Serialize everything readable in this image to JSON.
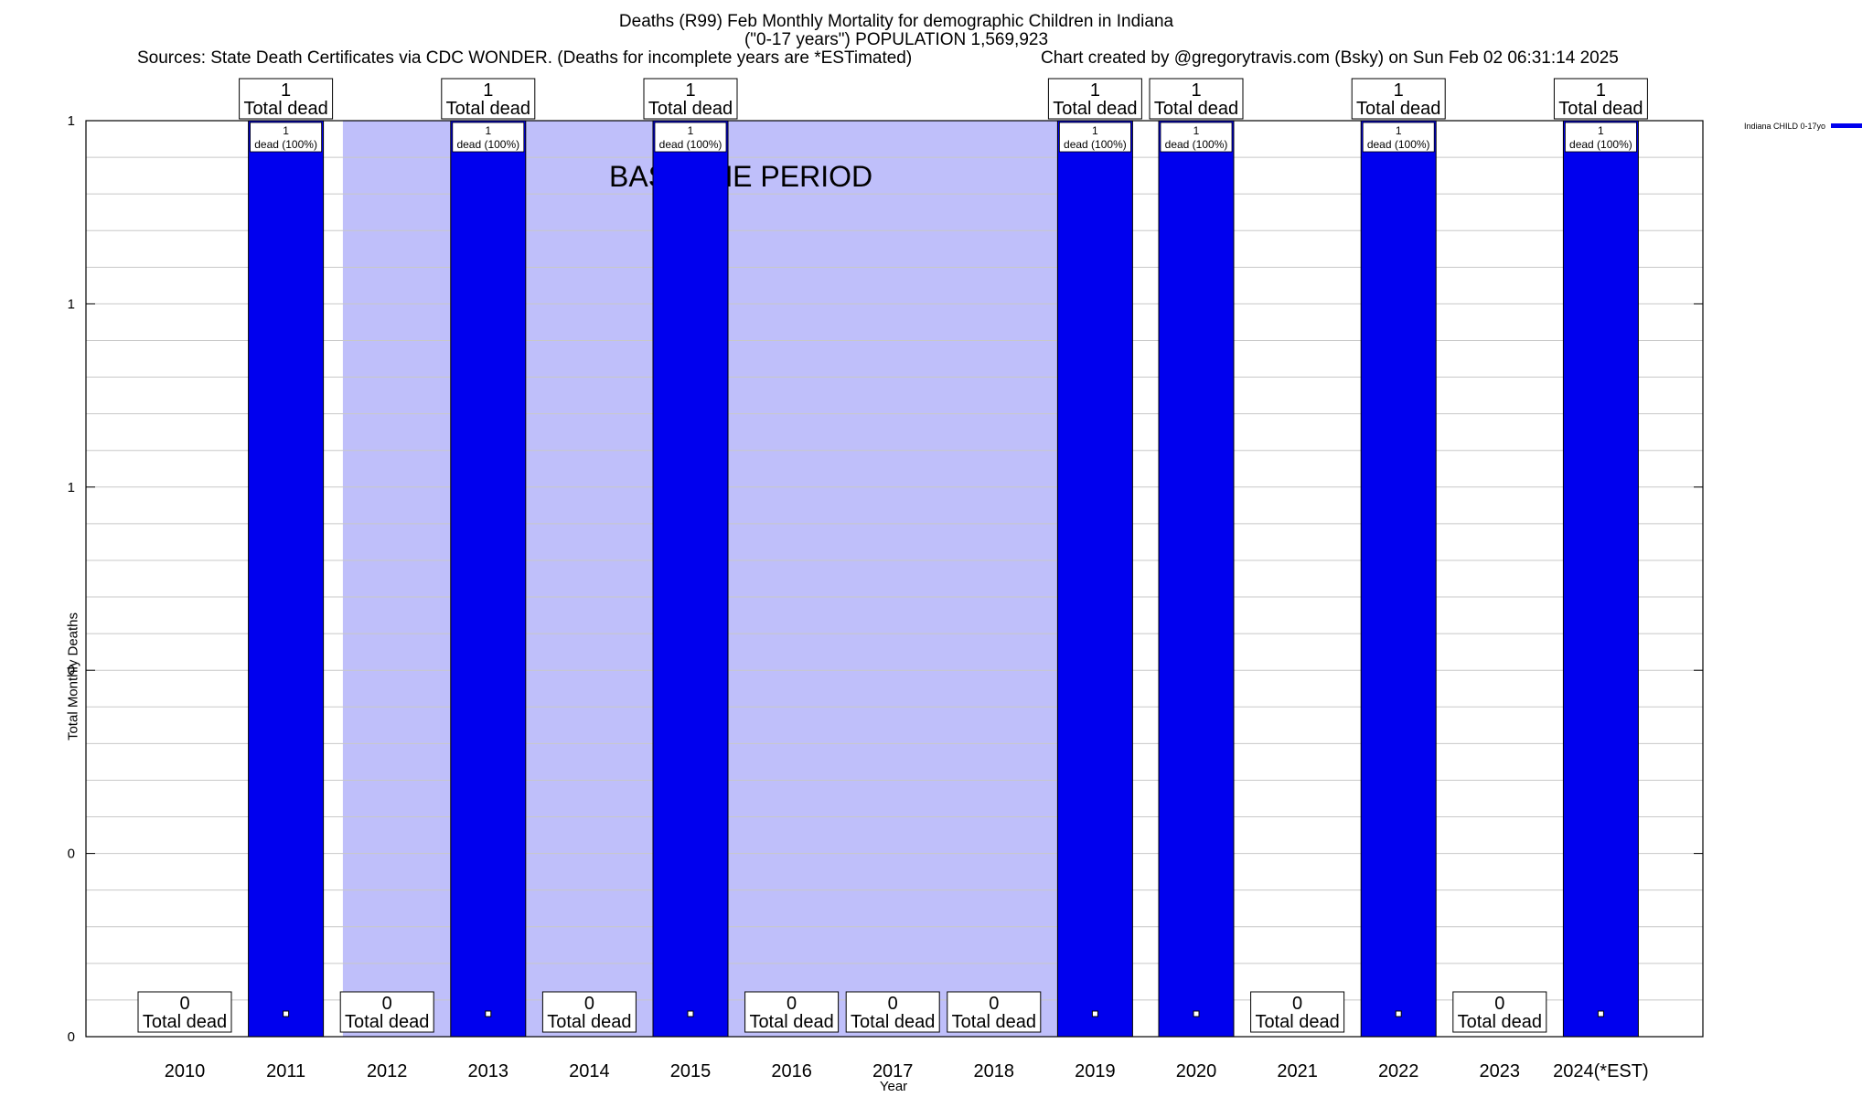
{
  "chart_data": {
    "type": "bar",
    "title": "Deaths (R99) Feb Monthly Mortality for demographic Children in Indiana",
    "subtitle": "(\"0-17 years\") POPULATION 1,569,923",
    "sources": "Sources: State Death Certificates via CDC WONDER. (Deaths for incomplete years are *ESTimated)",
    "credit": "Chart created by @gregorytravis.com (Bsky) on Sun Feb 02 06:31:14 2025",
    "xlabel": "Year",
    "ylabel": "Total Monthly Deaths",
    "categories": [
      "2010",
      "2011",
      "2012",
      "2013",
      "2014",
      "2015",
      "2016",
      "2017",
      "2018",
      "2019",
      "2020",
      "2021",
      "2022",
      "2023",
      "2024(*EST)"
    ],
    "values": [
      0,
      1,
      0,
      1,
      0,
      1,
      0,
      0,
      0,
      1,
      1,
      0,
      1,
      0,
      1
    ],
    "total_labels": [
      "0\nTotal dead",
      "1\nTotal dead",
      "0\nTotal dead",
      "1\nTotal dead",
      "0\nTotal dead",
      "1\nTotal dead",
      "0\nTotal dead",
      "0\nTotal dead",
      "0\nTotal dead",
      "1\nTotal dead",
      "1\nTotal dead",
      "0\nTotal dead",
      "1\nTotal dead",
      "0\nTotal dead",
      "1\nTotal dead"
    ],
    "inner_label_top": "1",
    "inner_label_bottom": "dead (100%)",
    "ylim": [
      0,
      1
    ],
    "y_tick_labels": [
      "0",
      "0",
      "0",
      "1",
      "1",
      "1"
    ],
    "grid": true,
    "baseline_period": {
      "label": "BASELINE PERIOD",
      "from": "2012",
      "to": "2019"
    },
    "legend": {
      "placement": "top-right",
      "entries": [
        {
          "name": "Indiana CHILD 0-17yo",
          "color": "#0000ee"
        }
      ]
    },
    "colors": {
      "bar": "#0000ee",
      "baseline": "#bfbffa",
      "grid": "#c8c8c8"
    }
  }
}
